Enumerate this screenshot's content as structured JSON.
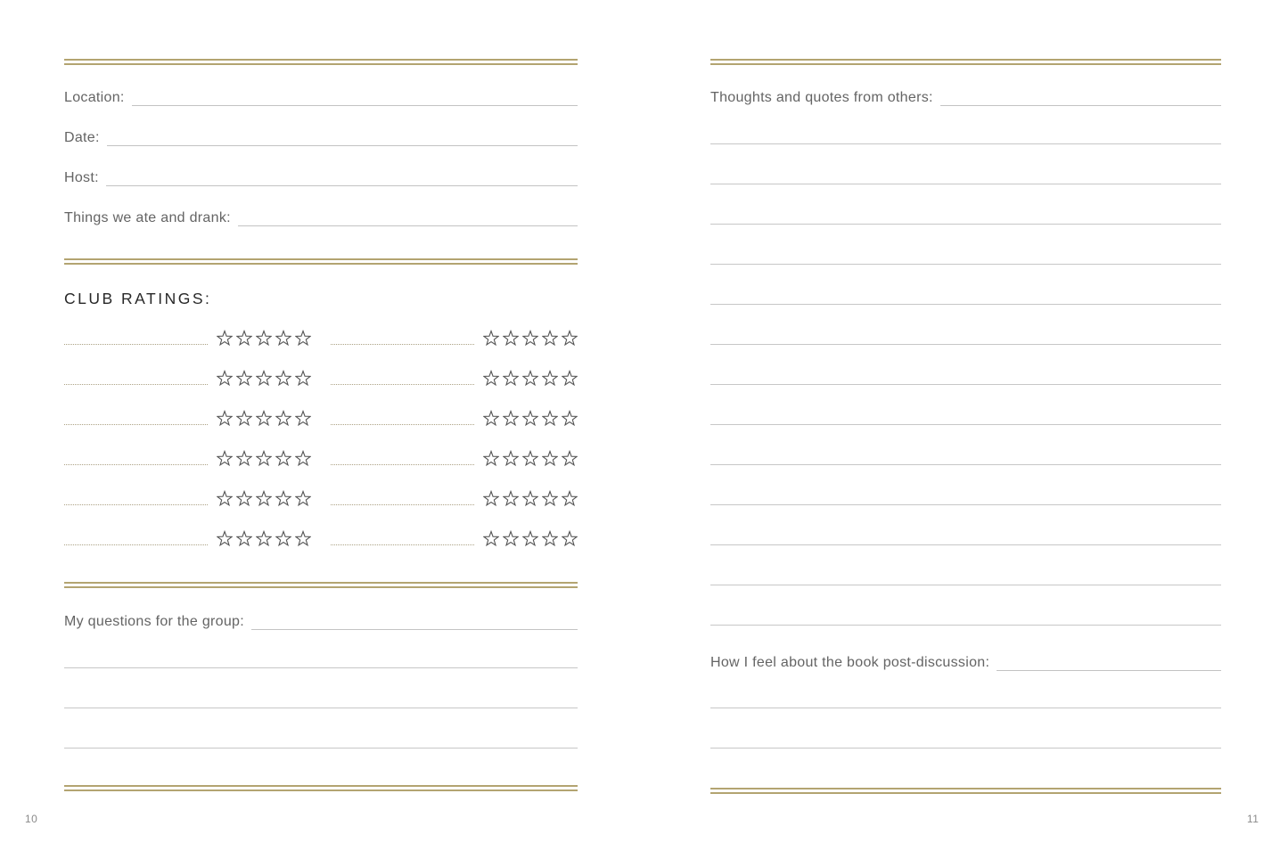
{
  "colors": {
    "accent_gold": "#b3a471",
    "rule_gray": "#c7c7c7",
    "dotted_tan": "#aca285",
    "label_gray": "#646464",
    "heading_dark": "#282828",
    "star_stroke": "#555555"
  },
  "page_left": {
    "page_number": "10",
    "fields": [
      {
        "label": "Location:"
      },
      {
        "label": "Date:"
      },
      {
        "label": "Host:"
      },
      {
        "label": "Things we ate and drank:"
      }
    ],
    "ratings": {
      "title": "CLUB RATINGS:",
      "rows": 6,
      "columns": 2,
      "stars_per_cell": 5
    },
    "questions": {
      "label": "My questions for the group:",
      "extra_lines": 3
    }
  },
  "page_right": {
    "page_number": "11",
    "thoughts": {
      "label": "Thoughts and quotes from others:",
      "extra_lines": 13
    },
    "post_discussion": {
      "label": "How I feel about the book post-discussion:",
      "extra_lines": 2
    }
  }
}
